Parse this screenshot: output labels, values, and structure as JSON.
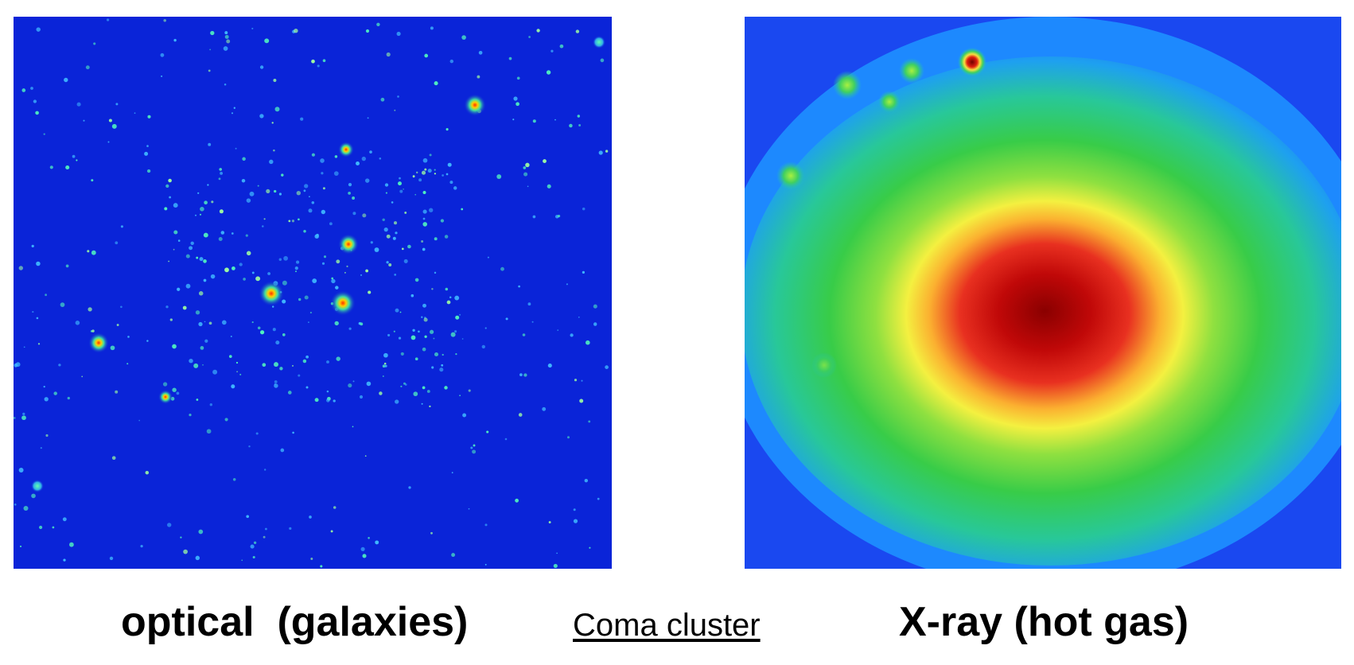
{
  "left_panel": {
    "caption": "optical  (galaxies)",
    "background_color": "#0a24d8"
  },
  "center": {
    "label": "Coma cluster"
  },
  "right_panel": {
    "caption": "X-ray (hot gas)",
    "colormap": [
      "#1a48f0",
      "#1e90ff",
      "#20c8c8",
      "#35d04a",
      "#fdfd33",
      "#f07020",
      "#d01010",
      "#8a0000"
    ]
  }
}
